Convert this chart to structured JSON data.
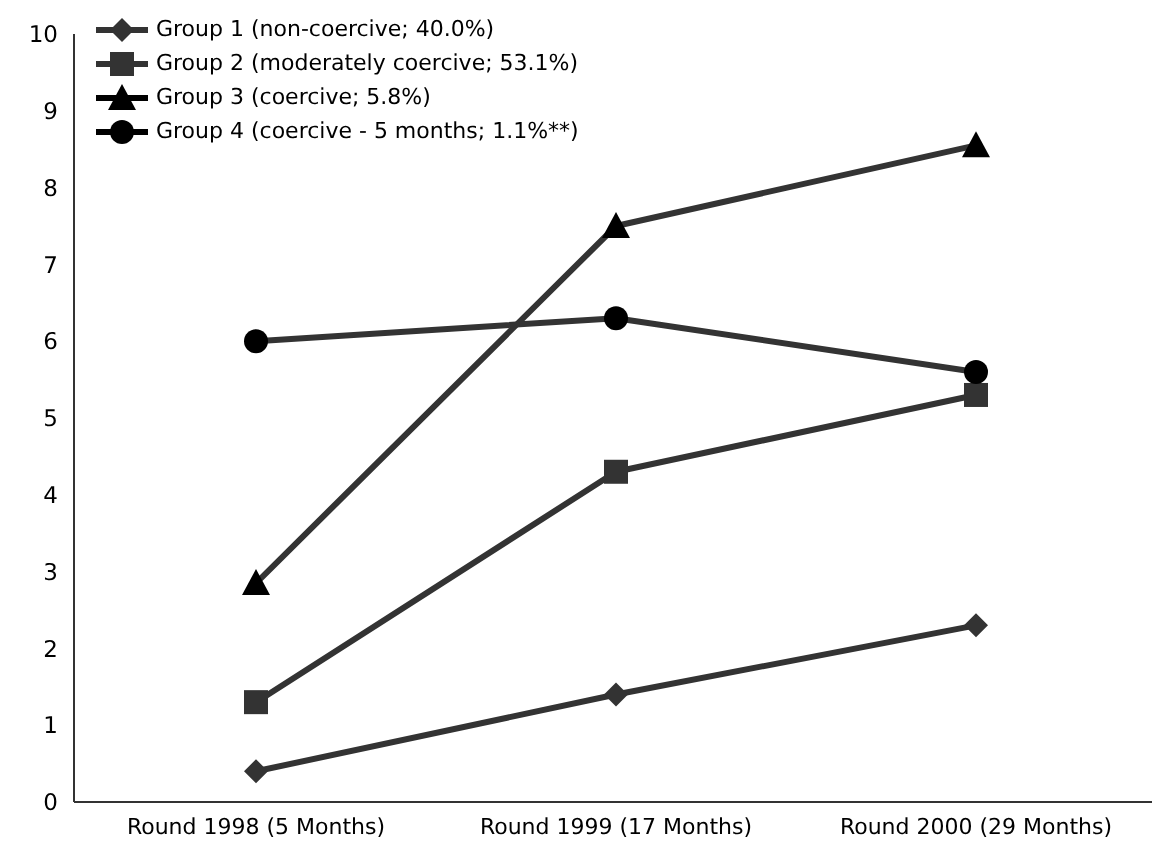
{
  "chart_data": {
    "type": "line",
    "categories": [
      "Round 1998 (5 Months)",
      "Round 1999 (17 Months)",
      "Round 2000 (29 Months)"
    ],
    "series": [
      {
        "name": "Group 1 (non-coercive; 40.0%)",
        "color": "#333333",
        "marker": "diamond",
        "values": [
          0.4,
          1.4,
          2.3
        ]
      },
      {
        "name": "Group 2 (moderately coercive; 53.1%)",
        "color": "#333333",
        "marker": "square",
        "values": [
          1.3,
          4.3,
          5.3
        ]
      },
      {
        "name": "Group 3 (coercive; 5.8%)",
        "color": "#000000",
        "marker": "triangle",
        "values": [
          2.85,
          7.5,
          8.55
        ]
      },
      {
        "name": "Group 4 (coercive - 5 months; 1.1%**)",
        "color": "#000000",
        "marker": "circle",
        "values": [
          6.0,
          6.3,
          5.6
        ]
      }
    ],
    "ylim": [
      0,
      10
    ],
    "yticks": [
      0,
      1,
      2,
      3,
      4,
      5,
      6,
      7,
      8,
      9,
      10
    ],
    "grid": false,
    "legend": "top left",
    "line_style": "solid"
  }
}
